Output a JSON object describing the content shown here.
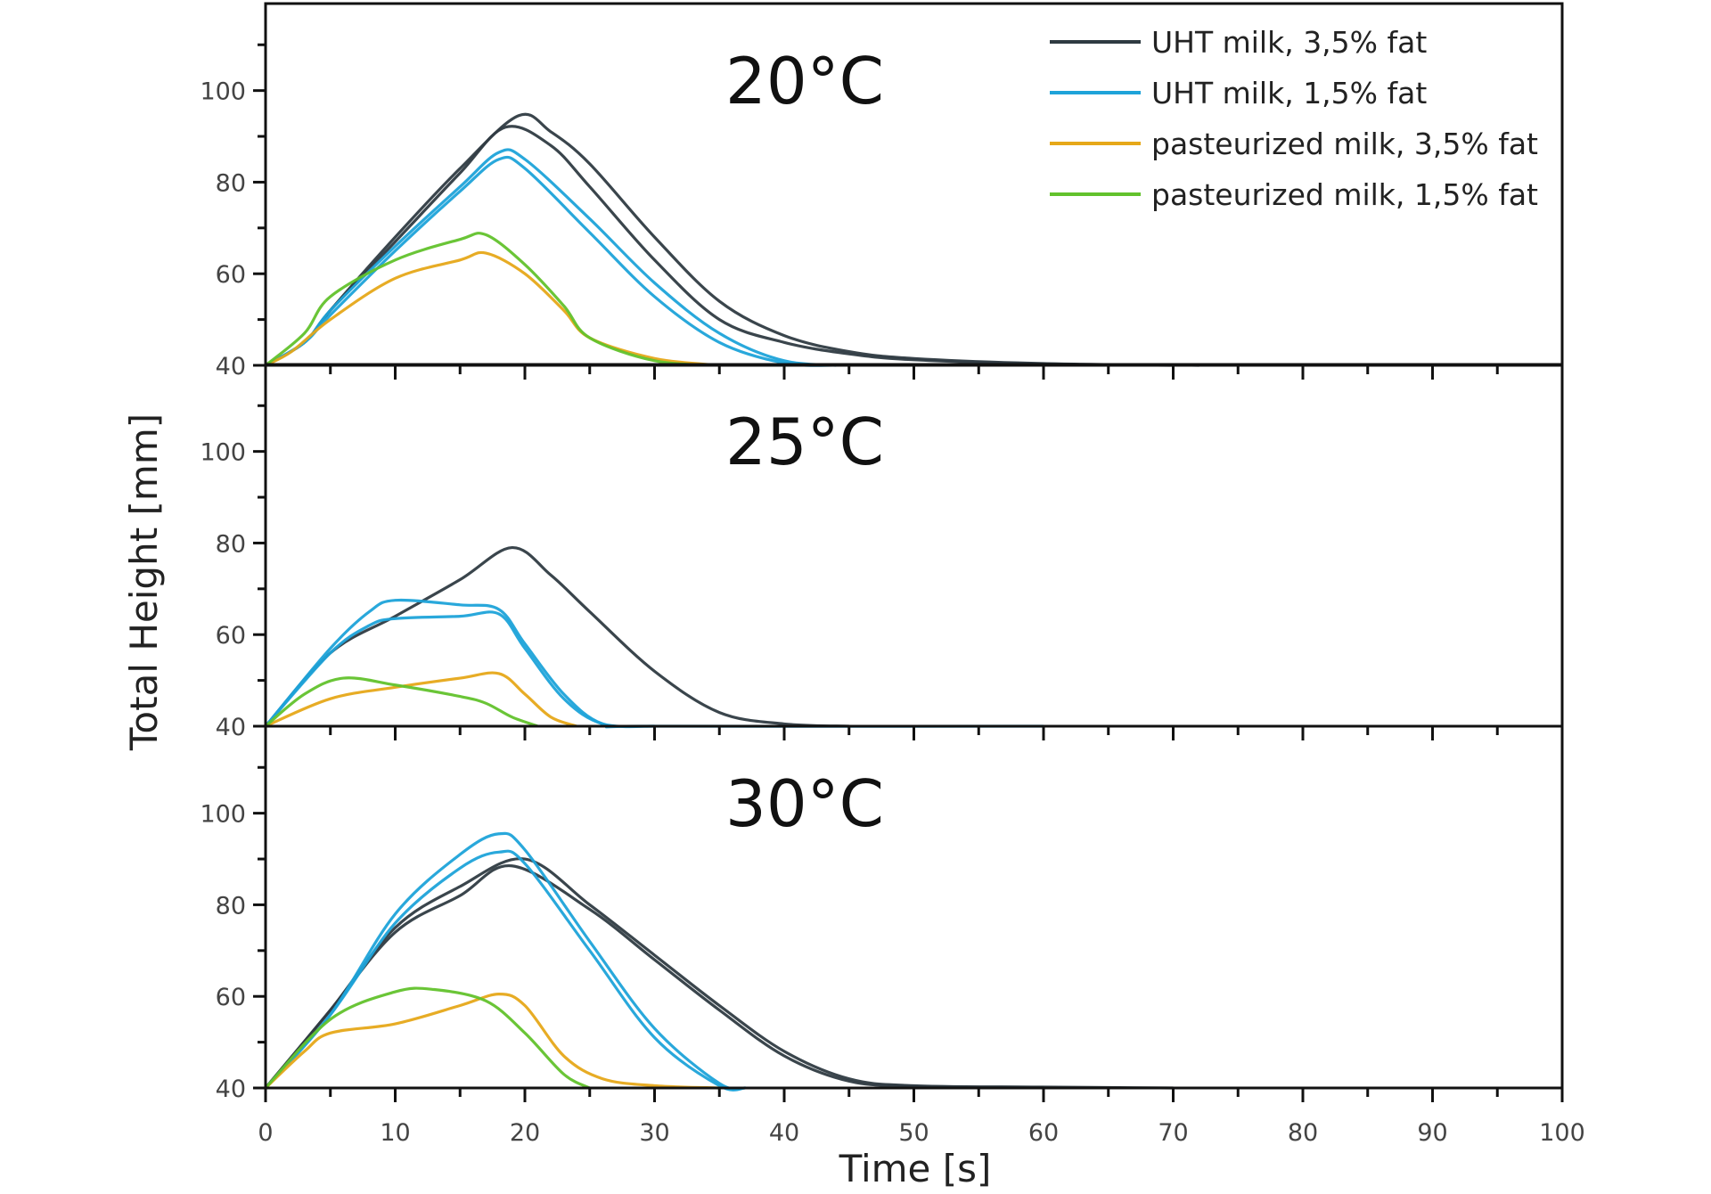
{
  "chart_data": {
    "type": "line",
    "xlabel": "Time [s]",
    "ylabel": "Total Height [mm]",
    "xlim": [
      0,
      100
    ],
    "ylim": [
      40,
      119
    ],
    "xticks": [
      0,
      10,
      20,
      30,
      40,
      50,
      60,
      70,
      80,
      90,
      100
    ],
    "yticks": [
      40,
      60,
      80,
      100
    ],
    "grid": false,
    "legend_position": "top-right",
    "legend": [
      {
        "name": "UHT milk, 3,5% fat",
        "color": "#2f3b42"
      },
      {
        "name": "UHT milk, 1,5% fat",
        "color": "#1ea3d9"
      },
      {
        "name": "pasteurized milk, 3,5% fat",
        "color": "#e6a819"
      },
      {
        "name": "pasteurized milk, 1,5% fat",
        "color": "#62c22c"
      }
    ],
    "panels": [
      {
        "title": "20°C",
        "series": [
          {
            "legend_index": 0,
            "replicates": [
              {
                "x": [
                  0,
                  3,
                  5,
                  10,
                  15,
                  19.5,
                  22,
                  25,
                  30,
                  35,
                  40,
                  45,
                  50,
                  60,
                  72
                ],
                "y": [
                  40,
                  45,
                  52,
                  68,
                  83,
                  94.5,
                  91,
                  84,
                  68,
                  54,
                  46.5,
                  43,
                  41.5,
                  40.4,
                  40
                ]
              },
              {
                "x": [
                  0,
                  3,
                  5,
                  10,
                  15,
                  18.5,
                  22,
                  25,
                  30,
                  35,
                  40,
                  45,
                  50,
                  60,
                  70
                ],
                "y": [
                  40,
                  45,
                  52,
                  67,
                  82,
                  92,
                  88,
                  79,
                  63,
                  50,
                  45,
                  42.5,
                  41.2,
                  40.3,
                  40
                ]
              }
            ]
          },
          {
            "legend_index": 1,
            "replicates": [
              {
                "x": [
                  0,
                  3,
                  5,
                  10,
                  15,
                  18,
                  20,
                  25,
                  30,
                  35,
                  40,
                  45
                ],
                "y": [
                  40,
                  45,
                  52,
                  66,
                  79,
                  86.5,
                  85,
                  72,
                  58,
                  47,
                  41,
                  40
                ]
              },
              {
                "x": [
                  0,
                  3,
                  5,
                  10,
                  15,
                  18,
                  20,
                  25,
                  30,
                  35,
                  40,
                  44
                ],
                "y": [
                  40,
                  45,
                  51,
                  65,
                  78,
                  85,
                  83,
                  69,
                  55,
                  45,
                  40.5,
                  40
                ]
              }
            ]
          },
          {
            "legend_index": 2,
            "replicates": [
              {
                "x": [
                  0,
                  2,
                  5,
                  10,
                  15,
                  17,
                  20,
                  23,
                  25,
                  30,
                  35
                ],
                "y": [
                  40,
                  43,
                  50,
                  59,
                  63,
                  64.5,
                  60,
                  52,
                  46,
                  41.5,
                  40
                ]
              }
            ]
          },
          {
            "legend_index": 3,
            "replicates": [
              {
                "x": [
                  0,
                  3,
                  5,
                  10,
                  15,
                  17,
                  20,
                  23,
                  25,
                  30,
                  35
                ],
                "y": [
                  40,
                  47,
                  55,
                  63,
                  67.5,
                  68.5,
                  62,
                  53,
                  46,
                  41,
                  40
                ]
              }
            ]
          }
        ]
      },
      {
        "title": "25°C",
        "series": [
          {
            "legend_index": 0,
            "replicates": [
              {
                "x": [
                  0,
                  5,
                  10,
                  15,
                  19,
                  22,
                  25,
                  30,
                  35,
                  40,
                  45
                ],
                "y": [
                  40,
                  56,
                  64,
                  72,
                  79,
                  73,
                  65,
                  52,
                  43,
                  40.5,
                  40
                ]
              }
            ]
          },
          {
            "legend_index": 1,
            "replicates": [
              {
                "x": [
                  0,
                  5,
                  8,
                  10,
                  15,
                  18,
                  20,
                  23,
                  26,
                  30,
                  60
                ],
                "y": [
                  40,
                  57,
                  65,
                  67.5,
                  66.5,
                  65.5,
                  58,
                  47,
                  40.5,
                  40,
                  40
                ]
              },
              {
                "x": [
                  0,
                  5,
                  8,
                  10,
                  15,
                  18,
                  20,
                  23,
                  26,
                  30
                ],
                "y": [
                  40,
                  56,
                  62,
                  63.5,
                  64,
                  64.5,
                  57,
                  46,
                  40.5,
                  40
                ]
              }
            ]
          },
          {
            "legend_index": 2,
            "replicates": [
              {
                "x": [
                  0,
                  5,
                  10,
                  15,
                  18,
                  20,
                  22,
                  24
                ],
                "y": [
                  40,
                  46,
                  48.5,
                  50.5,
                  51.5,
                  47,
                  42,
                  40
                ]
              }
            ]
          },
          {
            "legend_index": 3,
            "replicates": [
              {
                "x": [
                  0,
                  3,
                  6,
                  10,
                  15,
                  17,
                  19,
                  21
                ],
                "y": [
                  40,
                  47,
                  50.5,
                  49,
                  46.5,
                  45,
                  42,
                  40
                ]
              }
            ]
          }
        ]
      },
      {
        "title": "30°C",
        "series": [
          {
            "legend_index": 0,
            "replicates": [
              {
                "x": [
                  0,
                  5,
                  10,
                  15,
                  20,
                  25,
                  30,
                  35,
                  40,
                  45,
                  50,
                  60,
                  70
                ],
                "y": [
                  40,
                  57,
                  75,
                  84,
                  90,
                  80,
                  69,
                  58,
                  48,
                  42,
                  40.5,
                  40.2,
                  40
                ]
              },
              {
                "x": [
                  0,
                  5,
                  10,
                  15,
                  19,
                  25,
                  30,
                  35,
                  40,
                  45,
                  50,
                  60
                ],
                "y": [
                  40,
                  57,
                  74,
                  82,
                  88.5,
                  79,
                  68,
                  57,
                  47,
                  41.5,
                  40.4,
                  40.1
                ]
              }
            ]
          },
          {
            "legend_index": 1,
            "replicates": [
              {
                "x": [
                  0,
                  5,
                  10,
                  15,
                  18,
                  20,
                  25,
                  30,
                  35,
                  37
                ],
                "y": [
                  40,
                  56,
                  78,
                  91,
                  95.5,
                  92,
                  72,
                  53,
                  41,
                  40
                ]
              },
              {
                "x": [
                  0,
                  5,
                  10,
                  15,
                  18,
                  20,
                  25,
                  30,
                  35,
                  37
                ],
                "y": [
                  40,
                  56,
                  76,
                  88,
                  91.5,
                  89,
                  70,
                  51,
                  40.5,
                  40
                ]
              }
            ]
          },
          {
            "legend_index": 2,
            "replicates": [
              {
                "x": [
                  0,
                  3,
                  5,
                  10,
                  15,
                  18,
                  20,
                  23,
                  26,
                  30,
                  35
                ],
                "y": [
                  40,
                  48,
                  52,
                  54,
                  58,
                  60.5,
                  58,
                  47,
                  42,
                  40.5,
                  40
                ]
              }
            ]
          },
          {
            "legend_index": 3,
            "replicates": [
              {
                "x": [
                  0,
                  5,
                  10,
                  13,
                  17,
                  20,
                  23,
                  25
                ],
                "y": [
                  40,
                  55,
                  61,
                  61.5,
                  59,
                  52,
                  43,
                  40
                ]
              }
            ]
          }
        ]
      }
    ]
  }
}
